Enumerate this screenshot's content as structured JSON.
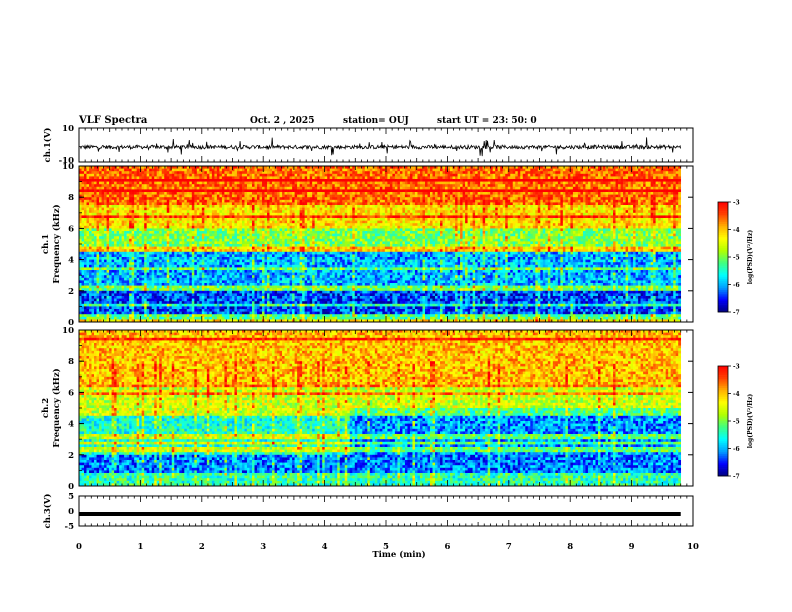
{
  "header": {
    "title": "VLF Spectra",
    "date": "Oct. 2 , 2025",
    "station": "station= OUJ",
    "start": "start UT = 23: 50: 0"
  },
  "colors": {
    "trace": "#000000",
    "colormap": [
      "#000080",
      "#0000ff",
      "#00a0ff",
      "#00ffff",
      "#40ff80",
      "#b0ff00",
      "#ffff00",
      "#ffb000",
      "#ff4000",
      "#ff0000"
    ]
  },
  "chart_data": [
    {
      "type": "line",
      "ylabel": "ch.1(V)",
      "ylim": [
        -10,
        10
      ],
      "yticks": [
        "10",
        "-10"
      ],
      "xlim": [
        0,
        10
      ],
      "description_level": "noisy waveform centered near zero with spikes"
    },
    {
      "type": "heatmap",
      "ylabel_channel": "ch.1",
      "ylabel": "Frequency (kHz)",
      "ylim": [
        0,
        10
      ],
      "yticks": [
        "0",
        "2",
        "4",
        "6",
        "8",
        "10"
      ],
      "xlim": [
        0,
        9.8
      ],
      "colorbar": {
        "label": "log(PSD)(V²/Hz)",
        "range": [
          -7,
          -3
        ],
        "ticks": [
          "-3",
          "-4",
          "-5",
          "-6",
          "-7"
        ]
      },
      "band_levels": [
        {
          "freq_khz": [
            0,
            0.5
          ],
          "log_psd": -5.2
        },
        {
          "freq_khz": [
            0.5,
            2
          ],
          "log_psd": -6.4
        },
        {
          "freq_khz": [
            2,
            4.5
          ],
          "log_psd": -6.0
        },
        {
          "freq_khz": [
            4.5,
            6
          ],
          "log_psd": -5.0
        },
        {
          "freq_khz": [
            6,
            7.5
          ],
          "log_psd": -4.2
        },
        {
          "freq_khz": [
            7.5,
            10
          ],
          "log_psd": -3.6
        }
      ]
    },
    {
      "type": "heatmap",
      "ylabel_channel": "ch.2",
      "ylabel": "Frequency (kHz)",
      "ylim": [
        0,
        10
      ],
      "yticks": [
        "0",
        "2",
        "4",
        "6",
        "8",
        "10"
      ],
      "xlim": [
        0,
        9.8
      ],
      "colorbar": {
        "label": "log(PSD)(V²/Hz)",
        "range": [
          -7,
          -3
        ],
        "ticks": [
          "-3",
          "-4",
          "-5",
          "-6",
          "-7"
        ]
      },
      "band_levels": [
        {
          "freq_khz": [
            0,
            0.8
          ],
          "log_psd": -5.4
        },
        {
          "freq_khz": [
            0.8,
            2
          ],
          "log_psd": -6.2
        },
        {
          "freq_khz": [
            2,
            4.5
          ],
          "log_psd": -5.5
        },
        {
          "freq_khz": [
            4.5,
            6.5
          ],
          "log_psd": -4.6
        },
        {
          "freq_khz": [
            6.5,
            10
          ],
          "log_psd": -4.0
        }
      ]
    },
    {
      "type": "line",
      "ylabel": "ch.3(V)",
      "ylim": [
        -5,
        5
      ],
      "yticks": [
        "5",
        "0",
        "-5"
      ],
      "xlim": [
        0,
        9.8
      ],
      "constant_level": -1
    }
  ],
  "x_axis": {
    "label": "Time (min)",
    "range": [
      0,
      10
    ],
    "ticks": [
      "0",
      "1",
      "2",
      "3",
      "4",
      "5",
      "6",
      "7",
      "8",
      "9",
      "10"
    ]
  }
}
